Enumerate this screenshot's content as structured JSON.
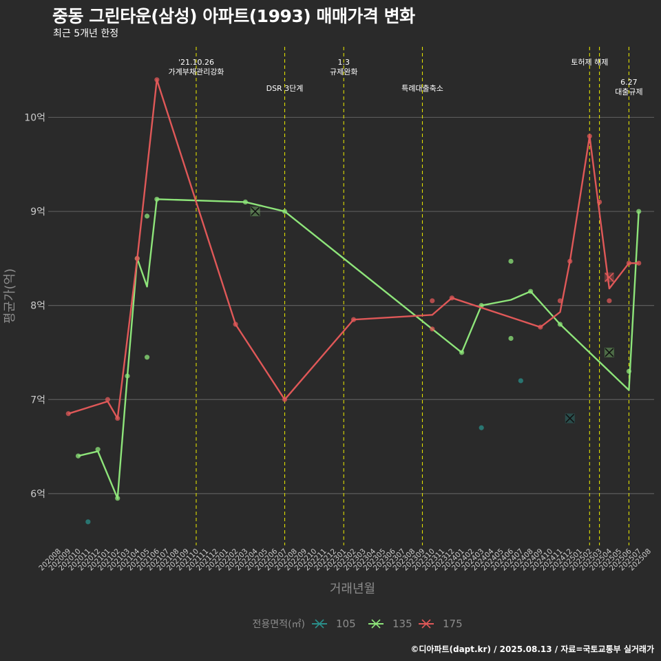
{
  "title": "중동 그린타운(삼성) 아파트(1993) 매매가격 변화",
  "subtitle": "최근 5개년 한정",
  "credit": "©디아파트(dapt.kr) / 2025.08.13 / 자료=국토교통부 실거래가",
  "colors": {
    "background": "#2a2a2a",
    "grid": "#5c5c5c",
    "axis_text": "#cccccc",
    "axis_title": "#8c8c8c",
    "event_line": "#e0e000",
    "s105": "#2a8f8a",
    "s135": "#8ee57a",
    "s175": "#e05858"
  },
  "chart_data": {
    "type": "line",
    "xlabel": "거래년월",
    "ylabel": "평균가(억)",
    "x_categories": [
      "202008",
      "202009",
      "202010",
      "202011",
      "202012",
      "202101",
      "202102",
      "202103",
      "202104",
      "202105",
      "202106",
      "202107",
      "202108",
      "202109",
      "202110",
      "202111",
      "202112",
      "202201",
      "202202",
      "202203",
      "202204",
      "202205",
      "202206",
      "202207",
      "202208",
      "202209",
      "202210",
      "202211",
      "202212",
      "202301",
      "202302",
      "202303",
      "202304",
      "202305",
      "202306",
      "202307",
      "202308",
      "202309",
      "202310",
      "202311",
      "202312",
      "202401",
      "202402",
      "202403",
      "202404",
      "202405",
      "202406",
      "202407",
      "202408",
      "202409",
      "202410",
      "202411",
      "202412",
      "202501",
      "202502",
      "202503",
      "202504",
      "202505",
      "202506",
      "202507",
      "202508"
    ],
    "ylim": [
      5.45,
      10.75
    ],
    "y_ticks": [
      6,
      7,
      8,
      9,
      10
    ],
    "y_tick_labels": [
      "6억",
      "7억",
      "8억",
      "9억",
      "10억"
    ],
    "grid": true,
    "legend": {
      "title": "전용면적(㎡)",
      "position": "bottom",
      "items": [
        "105",
        "135",
        "175"
      ]
    },
    "series": [
      {
        "name": "105",
        "color_key": "s105",
        "line": [],
        "points": [
          [
            "202011",
            5.7
          ],
          [
            "202403",
            6.7
          ],
          [
            "202407",
            7.2
          ]
        ],
        "markers_x": [
          [
            "202412",
            6.8
          ]
        ]
      },
      {
        "name": "135",
        "color_key": "s135",
        "line": [
          [
            "202010",
            6.4
          ],
          [
            "202012",
            6.45
          ],
          [
            "202102",
            5.95
          ],
          [
            "202103",
            7.25
          ],
          [
            "202104",
            8.5
          ],
          [
            "202105",
            8.2
          ],
          [
            "202106",
            9.13
          ],
          [
            "202203",
            9.1
          ],
          [
            "202207",
            9.0
          ],
          [
            "202401",
            7.5
          ],
          [
            "202403",
            8.0
          ],
          [
            "202406",
            8.06
          ],
          [
            "202408",
            8.15
          ],
          [
            "202411",
            7.8
          ],
          [
            "202506",
            7.1
          ],
          [
            "202507",
            9.0
          ]
        ],
        "points": [
          [
            "202010",
            6.4
          ],
          [
            "202012",
            6.47
          ],
          [
            "202102",
            5.95
          ],
          [
            "202103",
            7.25
          ],
          [
            "202104",
            8.5
          ],
          [
            "202105",
            8.95
          ],
          [
            "202105",
            7.45
          ],
          [
            "202106",
            9.13
          ],
          [
            "202203",
            9.1
          ],
          [
            "202207",
            9.0
          ],
          [
            "202401",
            7.5
          ],
          [
            "202403",
            8.0
          ],
          [
            "202406",
            8.47
          ],
          [
            "202406",
            7.65
          ],
          [
            "202408",
            8.15
          ],
          [
            "202411",
            7.8
          ],
          [
            "202506",
            7.3
          ],
          [
            "202507",
            9.0
          ]
        ],
        "markers_x": [
          [
            "202204",
            9.0
          ],
          [
            "202504",
            7.5
          ]
        ]
      },
      {
        "name": "175",
        "color_key": "s175",
        "line": [
          [
            "202009",
            6.85
          ],
          [
            "202101",
            6.98
          ],
          [
            "202102",
            6.8
          ],
          [
            "202104",
            8.5
          ],
          [
            "202106",
            10.4
          ],
          [
            "202202",
            7.8
          ],
          [
            "202207",
            7.0
          ],
          [
            "202302",
            7.85
          ],
          [
            "202310",
            7.9
          ],
          [
            "202312",
            8.08
          ],
          [
            "202409",
            7.77
          ],
          [
            "202411",
            7.93
          ],
          [
            "202412",
            8.47
          ],
          [
            "202502",
            9.8
          ],
          [
            "202504",
            8.18
          ],
          [
            "202506",
            8.45
          ],
          [
            "202507",
            8.45
          ]
        ],
        "points": [
          [
            "202009",
            6.85
          ],
          [
            "202101",
            7.0
          ],
          [
            "202102",
            6.8
          ],
          [
            "202104",
            8.5
          ],
          [
            "202106",
            10.4
          ],
          [
            "202202",
            7.8
          ],
          [
            "202207",
            7.0
          ],
          [
            "202302",
            7.85
          ],
          [
            "202310",
            8.05
          ],
          [
            "202310",
            7.75
          ],
          [
            "202312",
            8.08
          ],
          [
            "202409",
            7.77
          ],
          [
            "202411",
            8.05
          ],
          [
            "202412",
            8.47
          ],
          [
            "202502",
            9.8
          ],
          [
            "202503",
            9.1
          ],
          [
            "202504",
            8.05
          ],
          [
            "202506",
            8.45
          ],
          [
            "202507",
            8.45
          ]
        ],
        "markers_x": [
          [
            "202504",
            8.3
          ]
        ]
      }
    ],
    "events": [
      {
        "x": "202110",
        "lines": [
          "'21.10.26",
          "가계부채관리강화"
        ],
        "row": 0
      },
      {
        "x": "202207",
        "lines": [
          "DSR 3단계"
        ],
        "row": 1
      },
      {
        "x": "202301",
        "lines": [
          "1.3",
          "규제완화"
        ],
        "row": 0
      },
      {
        "x": "202309",
        "lines": [
          "특례대출축소"
        ],
        "row": 1
      },
      {
        "x": "202502",
        "lines": [
          "토허제 해제"
        ],
        "row": 0
      },
      {
        "x": "202503",
        "lines": [],
        "row": 0
      },
      {
        "x": "202506",
        "lines": [
          "6.27",
          "대출규제"
        ],
        "row": 2
      }
    ]
  }
}
